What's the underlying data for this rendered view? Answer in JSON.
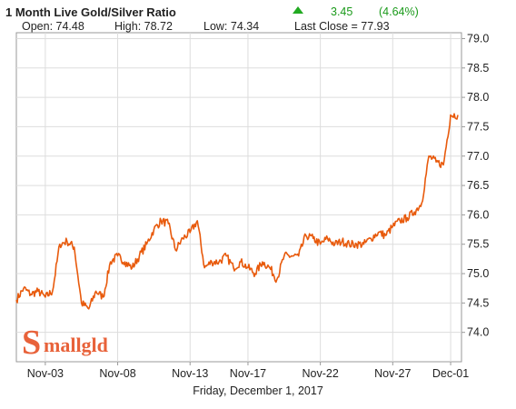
{
  "header": {
    "title": "1 Month Live Gold/Silver Ratio",
    "change_value": "3.45",
    "change_percent": "(4.64%)",
    "change_direction": "up",
    "open": "Open: 74.48",
    "high": "High: 78.72",
    "low": "Low: 74.34",
    "last_close": "Last Close = 77.93"
  },
  "footer": {
    "date": "Friday, December  1, 2017"
  },
  "logo": {
    "text": "Smallgld",
    "color": "#e8623a"
  },
  "colors": {
    "line": "#e85a0c",
    "grid": "#dddddd",
    "up": "#22aa22"
  },
  "chart_data": {
    "type": "line",
    "title": "1 Month Live Gold/Silver Ratio",
    "xlabel": "Friday, December  1, 2017",
    "ylabel": "",
    "ylim": [
      73.5,
      79.1
    ],
    "yticks": [
      74.0,
      74.5,
      75.0,
      75.5,
      76.0,
      76.5,
      77.0,
      77.5,
      78.0,
      78.5,
      79.0
    ],
    "ytick_labels": [
      "74.0",
      "74.5",
      "75.0",
      "75.5",
      "76.0",
      "76.5",
      "77.0",
      "77.5",
      "78.0",
      "78.5",
      "79.0"
    ],
    "xlim": [
      "2017-11-01",
      "2017-12-01T18:00"
    ],
    "xticks": [
      "2017-11-03",
      "2017-11-08",
      "2017-11-13",
      "2017-11-17",
      "2017-11-22",
      "2017-11-27",
      "2017-12-01"
    ],
    "xtick_labels": [
      "Nov-03",
      "Nov-08",
      "Nov-13",
      "Nov-17",
      "Nov-22",
      "Nov-27",
      "Dec-01"
    ],
    "grid": true,
    "series": [
      {
        "x": [
          "2017-11-01T00:00",
          "2017-11-01T12:00",
          "2017-11-02T00:00",
          "2017-11-02T12:00",
          "2017-11-03T00:00",
          "2017-11-03T12:00",
          "2017-11-04T00:00",
          "2017-11-04T12:00",
          "2017-11-05T00:00",
          "2017-11-05T12:00",
          "2017-11-06T00:00",
          "2017-11-06T12:00",
          "2017-11-07T00:00",
          "2017-11-07T12:00",
          "2017-11-08T00:00",
          "2017-11-08T12:00",
          "2017-11-09T00:00",
          "2017-11-09T12:00",
          "2017-11-10T00:00",
          "2017-11-10T12:00",
          "2017-11-11T00:00",
          "2017-11-11T12:00",
          "2017-11-12T00:00",
          "2017-11-12T12:00",
          "2017-11-13T00:00",
          "2017-11-13T12:00",
          "2017-11-14T00:00",
          "2017-11-14T12:00",
          "2017-11-15T00:00",
          "2017-11-15T12:00",
          "2017-11-16T00:00",
          "2017-11-16T12:00",
          "2017-11-17T00:00",
          "2017-11-17T12:00",
          "2017-11-18T00:00",
          "2017-11-18T12:00",
          "2017-11-19T00:00",
          "2017-11-19T12:00",
          "2017-11-20T00:00",
          "2017-11-20T12:00",
          "2017-11-21T00:00",
          "2017-11-21T12:00",
          "2017-11-22T00:00",
          "2017-11-22T12:00",
          "2017-11-23T00:00",
          "2017-11-23T12:00",
          "2017-11-24T00:00",
          "2017-11-24T12:00",
          "2017-11-25T00:00",
          "2017-11-25T12:00",
          "2017-11-26T00:00",
          "2017-11-26T12:00",
          "2017-11-27T00:00",
          "2017-11-27T12:00",
          "2017-11-28T00:00",
          "2017-11-28T12:00",
          "2017-11-29T00:00",
          "2017-11-29T12:00",
          "2017-11-30T00:00",
          "2017-11-30T12:00",
          "2017-12-01T00:00",
          "2017-12-01T12:00"
        ],
        "values": [
          74.55,
          74.75,
          74.65,
          74.7,
          74.6,
          74.7,
          75.5,
          75.55,
          75.45,
          74.5,
          74.4,
          74.7,
          74.6,
          75.2,
          75.3,
          75.2,
          75.1,
          75.3,
          75.5,
          75.75,
          75.9,
          75.85,
          75.4,
          75.6,
          75.7,
          75.9,
          75.1,
          75.2,
          75.2,
          75.3,
          75.1,
          75.2,
          75.1,
          75.0,
          75.2,
          75.1,
          74.9,
          75.3,
          75.3,
          75.3,
          75.65,
          75.6,
          75.5,
          75.6,
          75.5,
          75.55,
          75.5,
          75.5,
          75.5,
          75.6,
          75.7,
          75.65,
          75.8,
          75.9,
          75.95,
          76.05,
          76.2,
          77.0,
          76.9,
          76.85,
          77.7,
          77.7
        ]
      }
    ]
  }
}
